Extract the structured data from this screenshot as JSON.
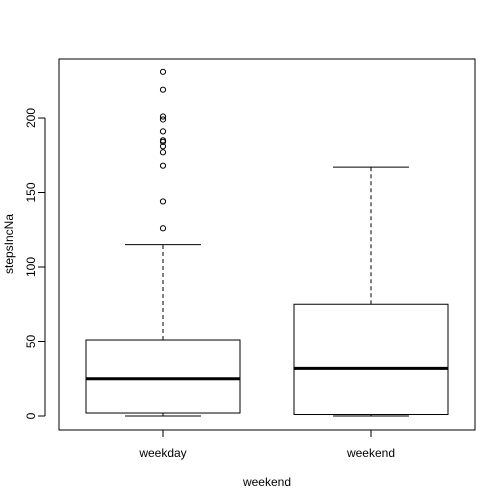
{
  "chart_data": {
    "type": "boxplot",
    "xlabel": "weekend",
    "ylabel": "stepsIncNa",
    "ylim": [
      -10,
      240
    ],
    "y_ticks": [
      0,
      50,
      100,
      150,
      200
    ],
    "categories": [
      "weekday",
      "weekend"
    ],
    "boxes": [
      {
        "category": "weekday",
        "whisker_low": 0,
        "q1": 2,
        "median": 25,
        "q3": 51,
        "whisker_high": 115,
        "outliers": [
          126,
          144,
          168,
          177,
          181,
          184,
          185,
          191,
          199,
          201,
          219,
          231
        ]
      },
      {
        "category": "weekend",
        "whisker_low": 0,
        "q1": 1,
        "median": 32,
        "q3": 75,
        "whisker_high": 167,
        "outliers": []
      }
    ],
    "colors": {
      "stroke": "#000000",
      "background": "#ffffff"
    }
  }
}
